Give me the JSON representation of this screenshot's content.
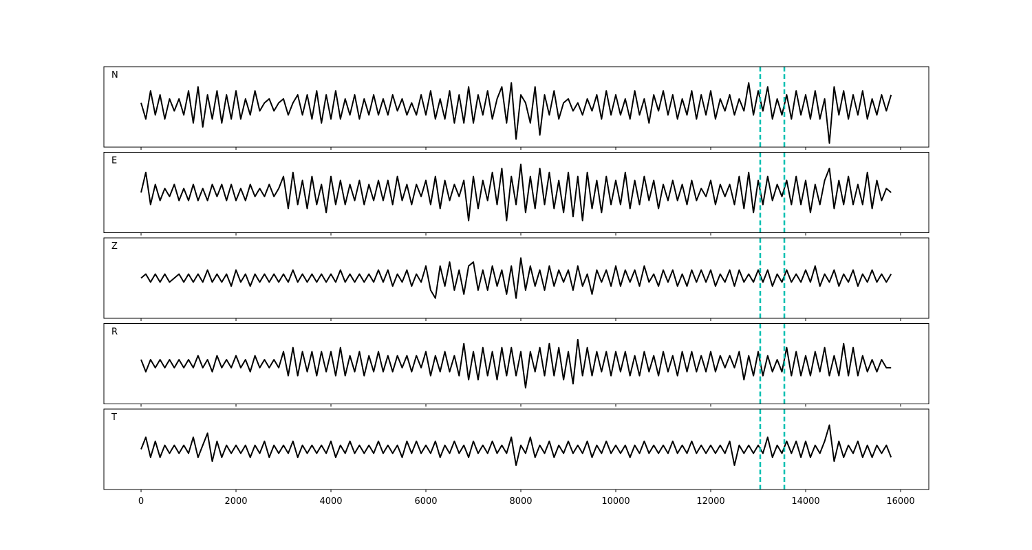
{
  "chart_data": {
    "type": "line",
    "x": [
      0,
      100,
      200,
      300,
      400,
      500,
      600,
      700,
      800,
      900,
      1000,
      1100,
      1200,
      1300,
      1400,
      1500,
      1600,
      1700,
      1800,
      1900,
      2000,
      2100,
      2200,
      2300,
      2400,
      2500,
      2600,
      2700,
      2800,
      2900,
      3000,
      3100,
      3200,
      3300,
      3400,
      3500,
      3600,
      3700,
      3800,
      3900,
      4000,
      4100,
      4200,
      4300,
      4400,
      4500,
      4600,
      4700,
      4800,
      4900,
      5000,
      5100,
      5200,
      5300,
      5400,
      5500,
      5600,
      5700,
      5800,
      5900,
      6000,
      6100,
      6200,
      6300,
      6400,
      6500,
      6600,
      6700,
      6800,
      6900,
      7000,
      7100,
      7200,
      7300,
      7400,
      7500,
      7600,
      7700,
      7800,
      7900,
      8000,
      8100,
      8200,
      8300,
      8400,
      8500,
      8600,
      8700,
      8800,
      8900,
      9000,
      9100,
      9200,
      9300,
      9400,
      9500,
      9600,
      9700,
      9800,
      9900,
      10000,
      10100,
      10200,
      10300,
      10400,
      10500,
      10600,
      10700,
      10800,
      10900,
      11000,
      11100,
      11200,
      11300,
      11400,
      11500,
      11600,
      11700,
      11800,
      11900,
      12000,
      12100,
      12200,
      12300,
      12400,
      12500,
      12600,
      12700,
      12800,
      12900,
      13000,
      13100,
      13200,
      13300,
      13400,
      13500,
      13600,
      13700,
      13800,
      13900,
      14000,
      14100,
      14200,
      14300,
      14400,
      14500,
      14600,
      14700,
      14800,
      14900,
      15000,
      15100,
      15200,
      15300,
      15400,
      15500,
      15600,
      15700,
      15800
    ],
    "series": [
      {
        "name": "N",
        "color": "#000000",
        "values": [
          0.1,
          -0.3,
          0.4,
          -0.2,
          0.3,
          -0.3,
          0.2,
          -0.1,
          0.2,
          -0.2,
          0.4,
          -0.4,
          0.5,
          -0.5,
          0.3,
          -0.3,
          0.4,
          -0.4,
          0.3,
          -0.3,
          0.4,
          -0.3,
          0.2,
          -0.2,
          0.4,
          -0.1,
          0.1,
          0.2,
          -0.1,
          0.1,
          0.2,
          -0.2,
          0.1,
          0.3,
          -0.2,
          0.3,
          -0.3,
          0.4,
          -0.4,
          0.3,
          -0.3,
          0.4,
          -0.3,
          0.2,
          -0.2,
          0.3,
          -0.3,
          0.2,
          -0.2,
          0.3,
          -0.2,
          0.2,
          -0.2,
          0.3,
          -0.1,
          0.2,
          -0.2,
          0.1,
          -0.2,
          0.3,
          -0.2,
          0.4,
          -0.3,
          0.2,
          -0.3,
          0.4,
          -0.4,
          0.3,
          -0.4,
          0.5,
          -0.4,
          0.3,
          -0.2,
          0.4,
          -0.3,
          0.2,
          0.5,
          -0.4,
          0.6,
          -0.8,
          0.3,
          0.1,
          -0.4,
          0.5,
          -0.7,
          0.3,
          -0.2,
          0.4,
          -0.3,
          0.1,
          0.2,
          -0.1,
          0.1,
          -0.2,
          0.2,
          -0.1,
          0.3,
          -0.3,
          0.4,
          -0.2,
          0.3,
          -0.2,
          0.2,
          -0.3,
          0.4,
          -0.2,
          0.2,
          -0.4,
          0.3,
          -0.1,
          0.4,
          -0.2,
          0.3,
          -0.3,
          0.2,
          -0.2,
          0.4,
          -0.3,
          0.3,
          -0.2,
          0.4,
          -0.3,
          0.2,
          -0.1,
          0.3,
          -0.2,
          0.2,
          -0.1,
          0.6,
          -0.2,
          0.4,
          -0.1,
          0.5,
          -0.3,
          0.2,
          -0.2,
          0.3,
          -0.3,
          0.4,
          -0.2,
          0.3,
          -0.3,
          0.4,
          -0.3,
          0.2,
          -0.9,
          0.5,
          -0.2,
          0.4,
          -0.3,
          0.3,
          -0.2,
          0.4,
          -0.3,
          0.2,
          -0.2,
          0.3,
          -0.1,
          0.3
        ]
      },
      {
        "name": "E",
        "color": "#000000",
        "values": [
          0.0,
          0.5,
          -0.3,
          0.2,
          -0.2,
          0.1,
          -0.1,
          0.2,
          -0.2,
          0.1,
          -0.2,
          0.2,
          -0.2,
          0.1,
          -0.2,
          0.2,
          -0.1,
          0.2,
          -0.2,
          0.2,
          -0.2,
          0.1,
          -0.2,
          0.2,
          -0.1,
          0.1,
          -0.1,
          0.2,
          -0.1,
          0.1,
          0.4,
          -0.4,
          0.5,
          -0.3,
          0.3,
          -0.4,
          0.4,
          -0.3,
          0.2,
          -0.5,
          0.4,
          -0.3,
          0.3,
          -0.3,
          0.2,
          -0.2,
          0.3,
          -0.3,
          0.2,
          -0.2,
          0.3,
          -0.2,
          0.3,
          -0.3,
          0.4,
          -0.2,
          0.2,
          -0.3,
          0.2,
          -0.1,
          0.3,
          -0.3,
          0.4,
          -0.4,
          0.3,
          -0.2,
          0.2,
          -0.1,
          0.3,
          -0.7,
          0.4,
          -0.4,
          0.3,
          -0.2,
          0.5,
          -0.3,
          0.6,
          -0.7,
          0.4,
          -0.3,
          0.7,
          -0.5,
          0.4,
          -0.4,
          0.6,
          -0.3,
          0.5,
          -0.4,
          0.3,
          -0.5,
          0.5,
          -0.6,
          0.4,
          -0.7,
          0.5,
          -0.4,
          0.3,
          -0.5,
          0.4,
          -0.3,
          0.3,
          -0.3,
          0.5,
          -0.4,
          0.3,
          -0.3,
          0.4,
          -0.2,
          0.3,
          -0.4,
          0.2,
          -0.2,
          0.3,
          -0.2,
          0.2,
          -0.3,
          0.3,
          -0.2,
          0.1,
          -0.1,
          0.3,
          -0.3,
          0.2,
          -0.1,
          0.2,
          -0.3,
          0.4,
          -0.4,
          0.5,
          -0.5,
          0.3,
          -0.3,
          0.4,
          -0.2,
          0.2,
          -0.1,
          0.3,
          -0.3,
          0.4,
          -0.3,
          0.3,
          -0.5,
          0.2,
          -0.3,
          0.3,
          0.6,
          -0.4,
          0.3,
          -0.3,
          0.4,
          -0.3,
          0.2,
          -0.3,
          0.5,
          -0.4,
          0.3,
          -0.2,
          0.1,
          0.0
        ]
      },
      {
        "name": "Z",
        "color": "#000000",
        "values": [
          0.0,
          0.1,
          -0.1,
          0.1,
          -0.1,
          0.1,
          -0.1,
          0.0,
          0.1,
          -0.1,
          0.1,
          -0.1,
          0.1,
          -0.1,
          0.2,
          -0.1,
          0.1,
          -0.1,
          0.1,
          -0.2,
          0.2,
          -0.1,
          0.1,
          -0.2,
          0.1,
          -0.1,
          0.1,
          -0.1,
          0.1,
          -0.1,
          0.1,
          -0.1,
          0.2,
          -0.1,
          0.1,
          -0.1,
          0.1,
          -0.1,
          0.1,
          -0.1,
          0.1,
          -0.1,
          0.2,
          -0.1,
          0.1,
          -0.1,
          0.1,
          -0.1,
          0.1,
          -0.1,
          0.2,
          -0.1,
          0.2,
          -0.2,
          0.1,
          -0.1,
          0.2,
          -0.2,
          0.1,
          -0.1,
          0.3,
          -0.3,
          -0.5,
          0.3,
          -0.2,
          0.4,
          -0.3,
          0.2,
          -0.4,
          0.3,
          0.4,
          -0.3,
          0.2,
          -0.3,
          0.3,
          -0.2,
          0.2,
          -0.4,
          0.3,
          -0.5,
          0.5,
          -0.3,
          0.3,
          -0.2,
          0.2,
          -0.3,
          0.3,
          -0.2,
          0.2,
          -0.1,
          0.2,
          -0.3,
          0.3,
          -0.2,
          0.1,
          -0.4,
          0.2,
          -0.1,
          0.2,
          -0.2,
          0.3,
          -0.2,
          0.2,
          -0.1,
          0.2,
          -0.2,
          0.3,
          -0.1,
          0.1,
          -0.2,
          0.2,
          -0.1,
          0.2,
          -0.2,
          0.1,
          -0.2,
          0.2,
          -0.1,
          0.2,
          -0.1,
          0.2,
          -0.2,
          0.1,
          -0.1,
          0.2,
          -0.2,
          0.2,
          -0.1,
          0.1,
          -0.1,
          0.2,
          -0.1,
          0.2,
          -0.2,
          0.1,
          -0.1,
          0.2,
          -0.1,
          0.1,
          -0.1,
          0.2,
          -0.1,
          0.3,
          -0.2,
          0.1,
          -0.1,
          0.2,
          -0.2,
          0.1,
          -0.1,
          0.2,
          -0.2,
          0.1,
          -0.1,
          0.2,
          -0.1,
          0.1,
          -0.1,
          0.1
        ]
      },
      {
        "name": "R",
        "color": "#000000",
        "values": [
          0.1,
          -0.2,
          0.1,
          -0.1,
          0.1,
          -0.1,
          0.1,
          -0.1,
          0.1,
          -0.1,
          0.1,
          -0.1,
          0.2,
          -0.1,
          0.1,
          -0.2,
          0.2,
          -0.1,
          0.1,
          -0.1,
          0.2,
          -0.1,
          0.1,
          -0.2,
          0.2,
          -0.1,
          0.1,
          -0.1,
          0.1,
          -0.1,
          0.3,
          -0.3,
          0.4,
          -0.3,
          0.3,
          -0.2,
          0.3,
          -0.3,
          0.3,
          -0.2,
          0.3,
          -0.3,
          0.4,
          -0.3,
          0.2,
          -0.2,
          0.3,
          -0.3,
          0.2,
          -0.2,
          0.3,
          -0.2,
          0.2,
          -0.2,
          0.2,
          -0.1,
          0.2,
          -0.2,
          0.2,
          -0.1,
          0.3,
          -0.3,
          0.2,
          -0.2,
          0.3,
          -0.2,
          0.2,
          -0.3,
          0.5,
          -0.4,
          0.3,
          -0.4,
          0.4,
          -0.3,
          0.3,
          -0.4,
          0.4,
          -0.3,
          0.4,
          -0.3,
          0.3,
          -0.6,
          0.3,
          -0.2,
          0.4,
          -0.3,
          0.5,
          -0.3,
          0.4,
          -0.4,
          0.3,
          -0.5,
          0.6,
          -0.3,
          0.4,
          -0.3,
          0.3,
          -0.2,
          0.3,
          -0.3,
          0.3,
          -0.2,
          0.3,
          -0.3,
          0.2,
          -0.3,
          0.3,
          -0.2,
          0.2,
          -0.3,
          0.3,
          -0.2,
          0.2,
          -0.3,
          0.3,
          -0.2,
          0.3,
          -0.2,
          0.2,
          -0.2,
          0.3,
          -0.2,
          0.2,
          -0.1,
          0.2,
          -0.1,
          0.3,
          -0.4,
          0.2,
          -0.3,
          0.3,
          -0.3,
          0.2,
          -0.2,
          0.1,
          -0.2,
          0.4,
          -0.3,
          0.3,
          -0.3,
          0.2,
          -0.3,
          0.3,
          -0.2,
          0.4,
          -0.3,
          0.2,
          -0.3,
          0.5,
          -0.3,
          0.4,
          -0.3,
          0.2,
          -0.2,
          0.1,
          -0.2,
          0.1,
          -0.1,
          -0.1
        ]
      },
      {
        "name": "T",
        "color": "#000000",
        "values": [
          0.0,
          0.3,
          -0.2,
          0.2,
          -0.2,
          0.1,
          -0.1,
          0.1,
          -0.1,
          0.1,
          -0.1,
          0.3,
          -0.2,
          0.1,
          0.4,
          -0.3,
          0.2,
          -0.2,
          0.1,
          -0.1,
          0.1,
          -0.1,
          0.1,
          -0.2,
          0.1,
          -0.1,
          0.2,
          -0.2,
          0.1,
          -0.1,
          0.1,
          -0.1,
          0.2,
          -0.2,
          0.1,
          -0.1,
          0.1,
          -0.1,
          0.1,
          -0.1,
          0.2,
          -0.2,
          0.1,
          -0.1,
          0.2,
          -0.1,
          0.1,
          -0.1,
          0.1,
          -0.1,
          0.2,
          -0.1,
          0.1,
          -0.1,
          0.1,
          -0.2,
          0.2,
          -0.1,
          0.2,
          -0.1,
          0.1,
          -0.1,
          0.2,
          -0.2,
          0.1,
          -0.1,
          0.2,
          -0.1,
          0.1,
          -0.2,
          0.2,
          -0.1,
          0.1,
          -0.1,
          0.2,
          -0.1,
          0.1,
          -0.1,
          0.3,
          -0.4,
          0.1,
          -0.1,
          0.3,
          -0.2,
          0.1,
          -0.1,
          0.2,
          -0.2,
          0.1,
          -0.1,
          0.2,
          -0.1,
          0.1,
          -0.1,
          0.2,
          -0.2,
          0.1,
          -0.1,
          0.2,
          -0.1,
          0.1,
          -0.1,
          0.1,
          -0.2,
          0.1,
          -0.1,
          0.2,
          -0.1,
          0.1,
          -0.1,
          0.1,
          -0.1,
          0.2,
          -0.1,
          0.1,
          -0.1,
          0.2,
          -0.1,
          0.1,
          -0.1,
          0.1,
          -0.1,
          0.1,
          -0.1,
          0.2,
          -0.4,
          0.1,
          -0.1,
          0.1,
          -0.1,
          0.1,
          -0.1,
          0.3,
          -0.2,
          0.1,
          -0.1,
          0.2,
          -0.1,
          0.2,
          -0.2,
          0.2,
          -0.2,
          0.1,
          -0.1,
          0.2,
          0.6,
          -0.3,
          0.2,
          -0.2,
          0.1,
          -0.1,
          0.2,
          -0.2,
          0.1,
          -0.2,
          0.1,
          -0.1,
          0.1,
          -0.2
        ]
      }
    ],
    "xlim": [
      -783,
      16594
    ],
    "ylim": [
      -1,
      1
    ],
    "xticks": [
      0,
      2000,
      4000,
      6000,
      8000,
      10000,
      12000,
      14000,
      16000
    ],
    "vlines": [
      13043,
      13551
    ],
    "vline_color": "#00bfb0"
  }
}
